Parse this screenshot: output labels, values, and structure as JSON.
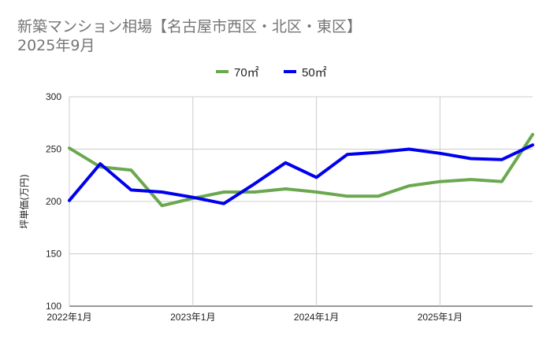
{
  "chart_data": {
    "type": "line",
    "title": "新築マンション相場【名古屋市西区・北区・東区】",
    "subtitle": "2025年9月",
    "xlabel": "",
    "ylabel": "坪単価(万円)",
    "ylim": [
      100,
      300
    ],
    "yticks": [
      "100",
      "150",
      "200",
      "250",
      "300"
    ],
    "x": [
      "2022-01",
      "2022-04",
      "2022-07",
      "2022-10",
      "2023-01",
      "2023-04",
      "2023-07",
      "2023-10",
      "2024-01",
      "2024-04",
      "2024-07",
      "2024-10",
      "2025-01",
      "2025-04",
      "2025-07",
      "2025-10"
    ],
    "xticks": [
      {
        "label": "2022年1月",
        "index": 0
      },
      {
        "label": "2023年1月",
        "index": 4
      },
      {
        "label": "2024年1月",
        "index": 8
      },
      {
        "label": "2025年1月",
        "index": 12
      }
    ],
    "grid": true,
    "legend_position": "top-center",
    "series": [
      {
        "name": "70㎡",
        "color": "#6aa84f",
        "values": [
          251,
          233,
          230,
          196,
          203,
          209,
          209,
          212,
          209,
          205,
          205,
          215,
          219,
          221,
          219,
          264
        ]
      },
      {
        "name": "50㎡",
        "color": "#0000ee",
        "values": [
          201,
          236,
          211,
          209,
          204,
          198,
          217,
          237,
          223,
          245,
          247,
          250,
          246,
          241,
          240,
          254
        ]
      }
    ]
  }
}
